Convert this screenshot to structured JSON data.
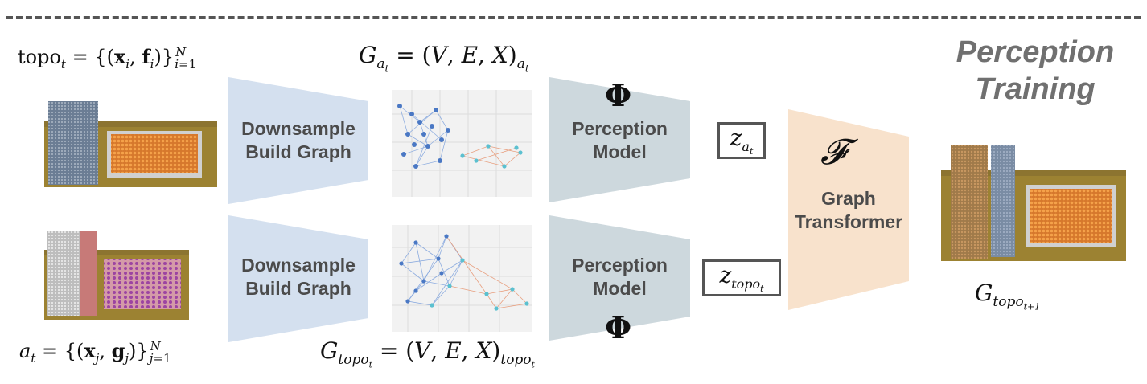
{
  "section_title": {
    "line1": "Perception",
    "line2": "Training"
  },
  "top_row": {
    "input_label": "topo",
    "graph_label": "G",
    "block1": {
      "line1": "Downsample",
      "line2": "Build Graph"
    },
    "block2": {
      "line1": "Perception",
      "line2": "Model"
    },
    "latent": "z"
  },
  "bottom_row": {
    "input_label": "a",
    "graph_label": "G",
    "block1": {
      "line1": "Downsample",
      "line2": "Build Graph"
    },
    "block2": {
      "line1": "Perception",
      "line2": "Model"
    },
    "latent": "z"
  },
  "phi_symbol": "Φ",
  "transformer": {
    "symbol": "𝓕",
    "line1": "Graph",
    "line2": "Transformer"
  },
  "output_label": "G",
  "colors": {
    "downsample_block": "#d4e0ef",
    "perception_block": "#cdd8dd",
    "transformer_block": "#f8e2cc",
    "graph_dark_node": "#4a78c4",
    "graph_light_node": "#5bc0d0",
    "graph_edge_orange": "#e8a080"
  }
}
